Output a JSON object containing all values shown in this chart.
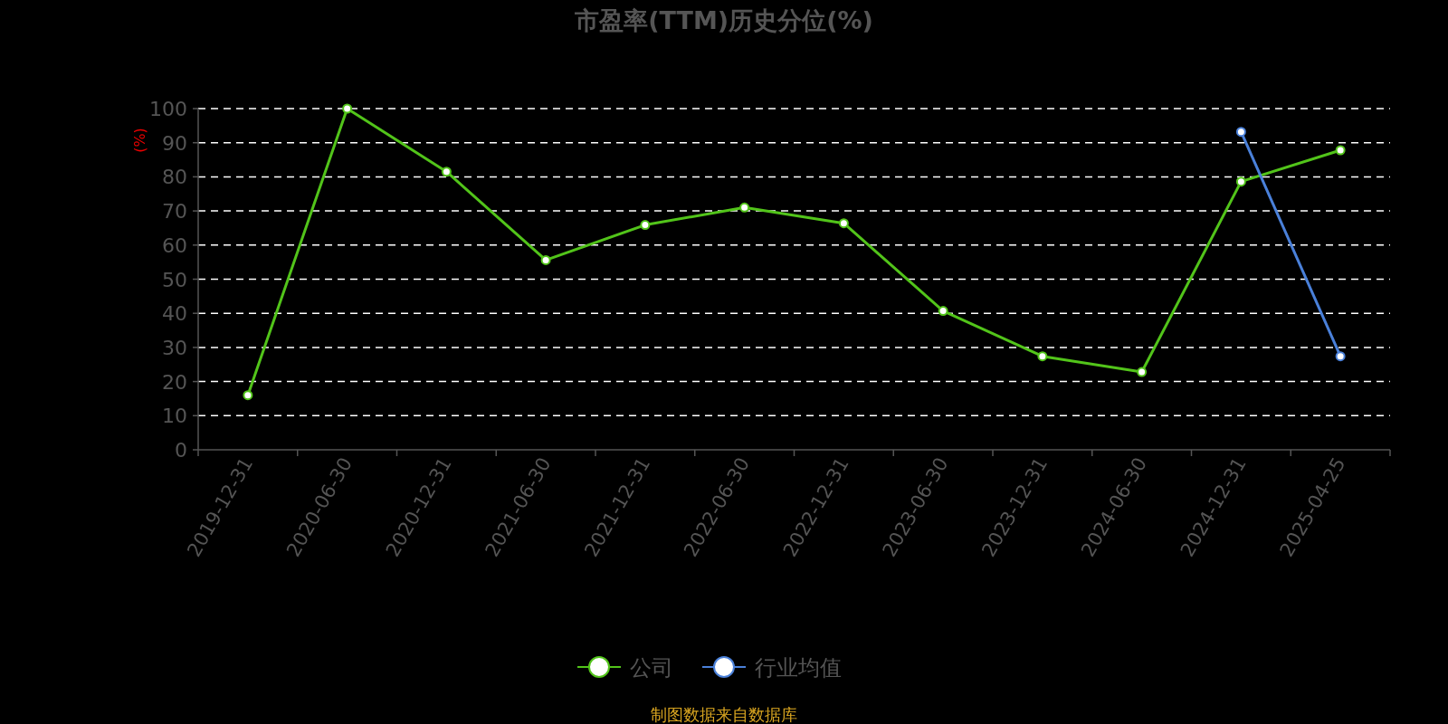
{
  "chart_data": {
    "type": "line",
    "title": "市盈率(TTM)历史分位(%)",
    "ylabel": "(%)",
    "categories": [
      "2019-12-31",
      "2020-06-30",
      "2020-12-31",
      "2021-06-30",
      "2021-12-31",
      "2022-06-30",
      "2022-12-31",
      "2023-06-30",
      "2023-12-31",
      "2024-06-30",
      "2024-12-31",
      "2025-04-25"
    ],
    "series": [
      {
        "name": "公司",
        "color": "#52c41a",
        "values": [
          16,
          100,
          81.5,
          55.6,
          65.9,
          71,
          66.4,
          40.7,
          27.4,
          22.8,
          78.6,
          87.8
        ]
      },
      {
        "name": "行业均值",
        "color": "#4a80d9",
        "values": [
          null,
          null,
          null,
          null,
          null,
          null,
          null,
          null,
          null,
          null,
          93.2,
          27.4
        ]
      }
    ],
    "ylim": [
      0,
      100
    ],
    "yticks": [
      0,
      10,
      20,
      30,
      40,
      50,
      60,
      70,
      80,
      90,
      100
    ],
    "grid": "y",
    "legend": "bottom",
    "marker": "circle",
    "annotations": [
      "制图数据来自数据库"
    ]
  }
}
